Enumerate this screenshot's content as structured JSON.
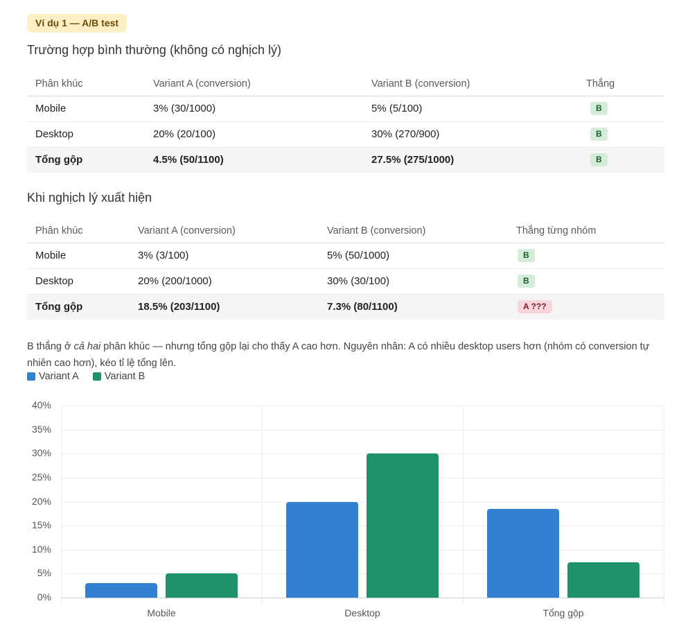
{
  "tag": "Ví dụ 1 — A/B test",
  "section1": {
    "title": "Trường hợp bình thường (không có nghịch lý)",
    "headers": [
      "Phân khúc",
      "Variant A (conversion)",
      "Variant B (conversion)",
      "Thắng"
    ],
    "rows": [
      {
        "segment": "Mobile",
        "a": "3% (30/1000)",
        "b": "5% (5/100)",
        "winner": "B"
      },
      {
        "segment": "Desktop",
        "a": "20% (20/100)",
        "b": "30% (270/900)",
        "winner": "B"
      },
      {
        "segment": "Tổng gộp",
        "a": "4.5% (50/1100)",
        "b": "27.5% (275/1000)",
        "winner": "B"
      }
    ]
  },
  "section2": {
    "title": "Khi nghịch lý xuất hiện",
    "headers": [
      "Phân khúc",
      "Variant A (conversion)",
      "Variant B (conversion)",
      "Thắng từng nhóm"
    ],
    "rows": [
      {
        "segment": "Mobile",
        "a": "3% (3/100)",
        "b": "5% (50/1000)",
        "winner": "B"
      },
      {
        "segment": "Desktop",
        "a": "20% (200/1000)",
        "b": "30% (30/100)",
        "winner": "B"
      },
      {
        "segment": "Tổng gộp",
        "a": "18.5% (203/1100)",
        "b": "7.3% (80/1100)",
        "winner": "A ???"
      }
    ]
  },
  "note": {
    "part1": "B thắng ở ",
    "emphasis": "cả hai",
    "part2": " phân khúc — nhưng tổng gộp lại cho thấy A cao hơn. Nguyên nhân: A có nhiều desktop users hơn (nhóm có conversion tự nhiên cao hơn), kéo tỉ lệ tổng lên."
  },
  "colors": {
    "variant_a": "#3480d0",
    "variant_b": "#1e936a",
    "badge_b_bg": "#d4edda",
    "badge_a_bg": "#f8d7dc",
    "tag_bg": "#fdefc4"
  },
  "chart_data": {
    "type": "bar",
    "title": "",
    "xlabel": "",
    "ylabel": "",
    "categories": [
      "Mobile",
      "Desktop",
      "Tổng gộp"
    ],
    "series": [
      {
        "name": "Variant A",
        "values": [
          3,
          20,
          18.5
        ],
        "color": "#3480d0"
      },
      {
        "name": "Variant B",
        "values": [
          5,
          30,
          7.3
        ],
        "color": "#1e936a"
      }
    ],
    "ylim": [
      0,
      40
    ],
    "yticks": [
      "0%",
      "5%",
      "10%",
      "15%",
      "20%",
      "25%",
      "30%",
      "35%",
      "40%"
    ],
    "grid": true,
    "legend_position": "top-left"
  }
}
